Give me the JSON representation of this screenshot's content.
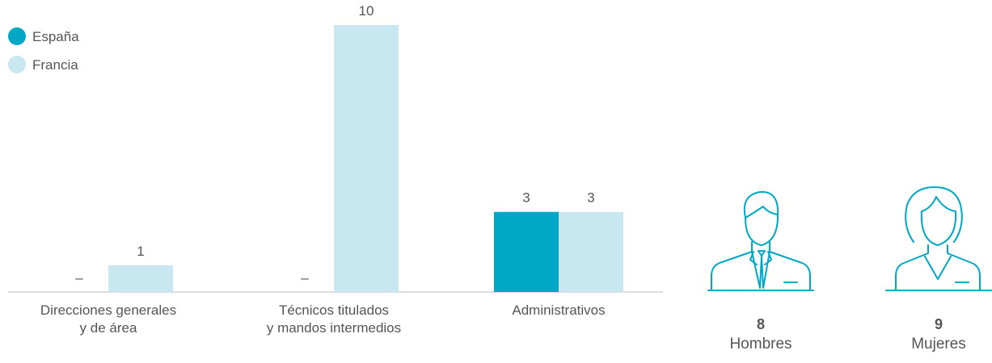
{
  "chart_data": {
    "type": "bar",
    "categories": [
      "Direcciones generales\ny de área",
      "Técnicos titulados\ny mandos intermedios",
      "Administrativos"
    ],
    "series": [
      {
        "name": "España",
        "color": "#00a8c6",
        "values": [
          null,
          null,
          3
        ],
        "value_labels": [
          "–",
          "–",
          "3"
        ]
      },
      {
        "name": "Francia",
        "color": "#c9e7f1",
        "values": [
          1,
          10,
          3
        ]
      }
    ],
    "stats": [
      {
        "value": 8,
        "label": "Hombres"
      },
      {
        "value": 9,
        "label": "Mujeres"
      }
    ]
  }
}
